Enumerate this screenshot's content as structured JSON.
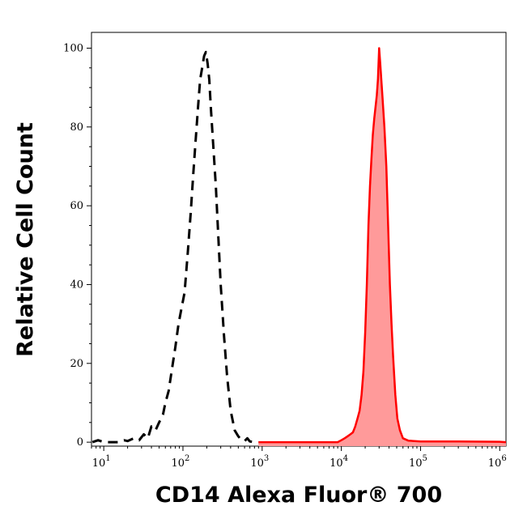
{
  "chart_data": {
    "type": "area",
    "xlabel": "CD14 Alexa Fluor® 700",
    "ylabel": "Relative Cell Count",
    "x_scale": "log",
    "xlim": [
      7,
      1200000
    ],
    "ylim": [
      -1,
      104
    ],
    "x_ticks": [
      {
        "value": 10,
        "base": "10",
        "exp": "1"
      },
      {
        "value": 100,
        "base": "10",
        "exp": "2"
      },
      {
        "value": 1000,
        "base": "10",
        "exp": "3"
      },
      {
        "value": 10000,
        "base": "10",
        "exp": "4"
      },
      {
        "value": 100000,
        "base": "10",
        "exp": "5"
      },
      {
        "value": 1000000,
        "base": "10",
        "exp": "6"
      }
    ],
    "y_ticks": [
      0,
      20,
      40,
      60,
      80,
      100
    ],
    "grid": false,
    "colors": {
      "stained": "#ff0000",
      "stained_fill": "#ff9a9a",
      "control": "#000000"
    },
    "series": [
      {
        "style": "dashed-black",
        "x": [
          7.2,
          8.5,
          10,
          12,
          15,
          18,
          20,
          24,
          28,
          32,
          36,
          40,
          45,
          50,
          56,
          60,
          66,
          72,
          80,
          88,
          96,
          105,
          115,
          125,
          135,
          145,
          155,
          165,
          175,
          185,
          195,
          205,
          215,
          225,
          240,
          260,
          280,
          300,
          330,
          360,
          400,
          450,
          500,
          550,
          600,
          650,
          700,
          800,
          900
        ],
        "y": [
          0,
          0.5,
          0,
          0,
          0,
          0.5,
          0.3,
          1,
          0.5,
          2,
          1,
          4,
          3,
          5,
          7,
          10,
          13,
          18,
          24,
          30,
          34,
          38,
          48,
          58,
          68,
          77,
          85,
          92,
          95,
          98,
          99,
          96,
          92,
          85,
          76,
          65,
          52,
          40,
          27,
          17,
          8,
          3,
          1.5,
          0.5,
          0.3,
          1,
          0.2,
          0,
          0
        ]
      },
      {
        "style": "filled-red",
        "x": [
          900,
          2000,
          5000,
          9000,
          10000,
          11000,
          12000,
          13000,
          14000,
          15000,
          16000,
          17000,
          18000,
          19000,
          20000,
          21000,
          22000,
          23000,
          24000,
          25000,
          26000,
          27000,
          28000,
          29000,
          30000,
          31000,
          32000,
          33000,
          35000,
          37000,
          39000,
          41000,
          43000,
          45000,
          48000,
          51000,
          55000,
          60000,
          70000,
          100000,
          300000,
          1000000,
          1200000
        ],
        "y": [
          0,
          0,
          0,
          0,
          0.5,
          1,
          1.5,
          2,
          2.5,
          4,
          6,
          8,
          12,
          18,
          28,
          40,
          55,
          65,
          72,
          78,
          82,
          85,
          88,
          92,
          100,
          96,
          92,
          88,
          80,
          70,
          55,
          40,
          30,
          22,
          12,
          6,
          3,
          1,
          0.4,
          0.2,
          0.2,
          0.1,
          0
        ]
      }
    ]
  }
}
